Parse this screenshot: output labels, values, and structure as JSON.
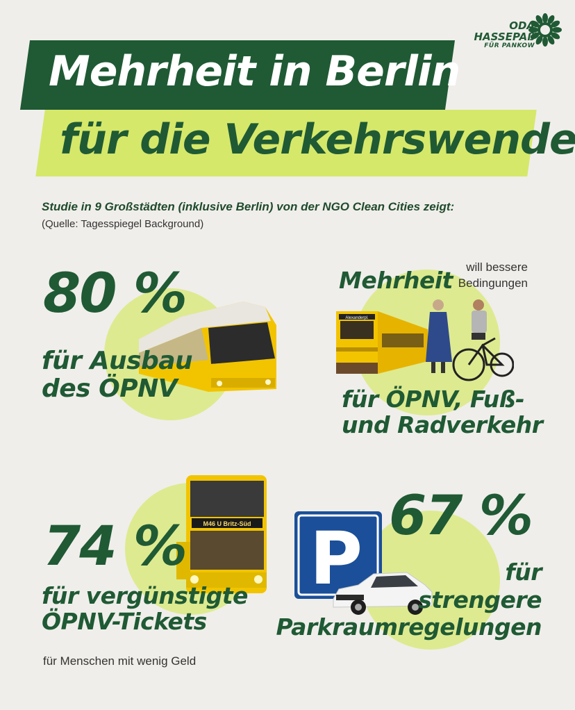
{
  "title": {
    "line1": "Mehrheit in Berlin",
    "line2": "für die Verkehrswende"
  },
  "logo": {
    "line1": "ODA",
    "line2": "HASSEPAß",
    "line3": "FÜR PANKOW"
  },
  "intro": {
    "subtitle": "Studie in 9 Großstädten (inklusive Berlin) von der NGO Clean Cities zeigt:",
    "source": "(Quelle: Tagesspiegel Background)"
  },
  "stat1": {
    "value": "80 %",
    "line1": "für Ausbau",
    "line2": "des ÖPNV"
  },
  "stat2": {
    "value": "Mehrheit",
    "aside1": "will bessere",
    "aside2": "Bedingungen",
    "line1": "für ÖPNV, Fuß-",
    "line2": "und Radverkehr"
  },
  "stat3": {
    "value": "74 %",
    "line1": "für vergünstigte",
    "line2": "ÖPNV-Tickets",
    "note": "für Menschen mit wenig Geld"
  },
  "stat4": {
    "value": "67 %",
    "line1": "für",
    "line2": "strengere",
    "line3": "Parkraumregelungen"
  },
  "images": {
    "bus_sign": "M46 U Britz-Süd",
    "ubahn_sign": "Alexanderpl.",
    "parking_sign": "P"
  },
  "colors": {
    "dark_green": "#1f5a34",
    "lime": "#d6e86a",
    "background": "#f0eeea",
    "parking_blue": "#1b4f99",
    "yellow": "#f2c400"
  }
}
